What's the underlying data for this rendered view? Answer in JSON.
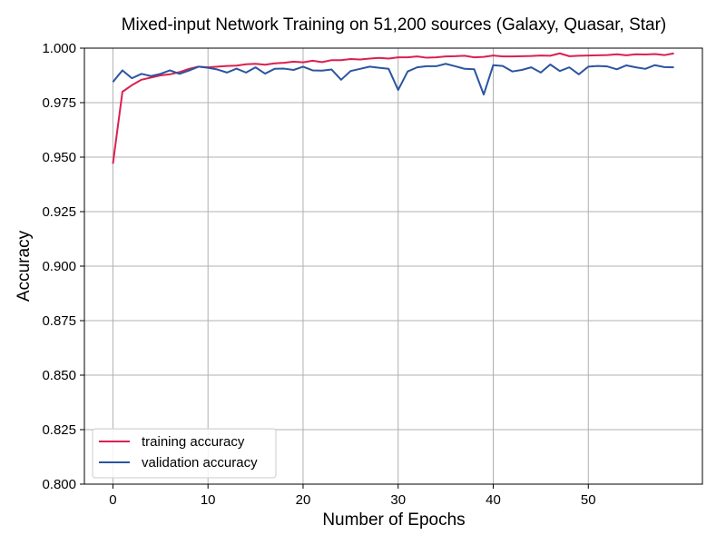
{
  "chart_data": {
    "type": "line",
    "title": "Mixed-input Network Training on 51,200 sources (Galaxy, Quasar, Star)",
    "xlabel": "Number of Epochs",
    "ylabel": "Accuracy",
    "xlim": [
      -3,
      62
    ],
    "ylim": [
      0.8,
      1.0
    ],
    "xticks": [
      0,
      10,
      20,
      30,
      40,
      50
    ],
    "yticks": [
      0.8,
      0.825,
      0.85,
      0.875,
      0.9,
      0.925,
      0.95,
      0.975,
      1.0
    ],
    "ytick_labels": [
      "0.800",
      "0.825",
      "0.850",
      "0.875",
      "0.900",
      "0.925",
      "0.950",
      "0.975",
      "1.000"
    ],
    "grid": true,
    "legend_position": "lower-left",
    "x": [
      0,
      1,
      2,
      3,
      4,
      5,
      6,
      7,
      8,
      9,
      10,
      11,
      12,
      13,
      14,
      15,
      16,
      17,
      18,
      19,
      20,
      21,
      22,
      23,
      24,
      25,
      26,
      27,
      28,
      29,
      30,
      31,
      32,
      33,
      34,
      35,
      36,
      37,
      38,
      39,
      40,
      41,
      42,
      43,
      44,
      45,
      46,
      47,
      48,
      49,
      50,
      51,
      52,
      53,
      54,
      55,
      56,
      57,
      58,
      59
    ],
    "series": [
      {
        "name": "training accuracy",
        "color": "#dc1f4f",
        "values": [
          0.947,
          0.98,
          0.983,
          0.9855,
          0.9865,
          0.9875,
          0.988,
          0.989,
          0.9905,
          0.9915,
          0.9912,
          0.9915,
          0.9918,
          0.992,
          0.9926,
          0.9928,
          0.9924,
          0.993,
          0.9933,
          0.9938,
          0.9935,
          0.9942,
          0.9936,
          0.9945,
          0.9945,
          0.995,
          0.9948,
          0.9952,
          0.9955,
          0.9952,
          0.9958,
          0.9958,
          0.9962,
          0.9956,
          0.9958,
          0.9962,
          0.9963,
          0.9965,
          0.9958,
          0.996,
          0.9966,
          0.9962,
          0.9962,
          0.9963,
          0.9964,
          0.9966,
          0.9965,
          0.9976,
          0.9963,
          0.9965,
          0.9966,
          0.9967,
          0.9968,
          0.9972,
          0.9967,
          0.9972,
          0.9971,
          0.9973,
          0.9968,
          0.9976
        ]
      },
      {
        "name": "validation accuracy",
        "color": "#2b55a0",
        "values": [
          0.9845,
          0.9898,
          0.9862,
          0.9882,
          0.9872,
          0.9882,
          0.9898,
          0.9882,
          0.9897,
          0.9915,
          0.991,
          0.9902,
          0.9888,
          0.9906,
          0.9888,
          0.9912,
          0.9883,
          0.9905,
          0.9906,
          0.99,
          0.9915,
          0.9898,
          0.9897,
          0.9902,
          0.9855,
          0.9895,
          0.9905,
          0.9915,
          0.991,
          0.9905,
          0.9808,
          0.9893,
          0.9912,
          0.9917,
          0.9917,
          0.9928,
          0.9917,
          0.9905,
          0.9903,
          0.9787,
          0.9922,
          0.9918,
          0.9893,
          0.99,
          0.9912,
          0.9888,
          0.9925,
          0.9895,
          0.9912,
          0.988,
          0.9915,
          0.9918,
          0.9916,
          0.9903,
          0.9921,
          0.9912,
          0.9905,
          0.9922,
          0.9913,
          0.9912
        ]
      }
    ]
  }
}
